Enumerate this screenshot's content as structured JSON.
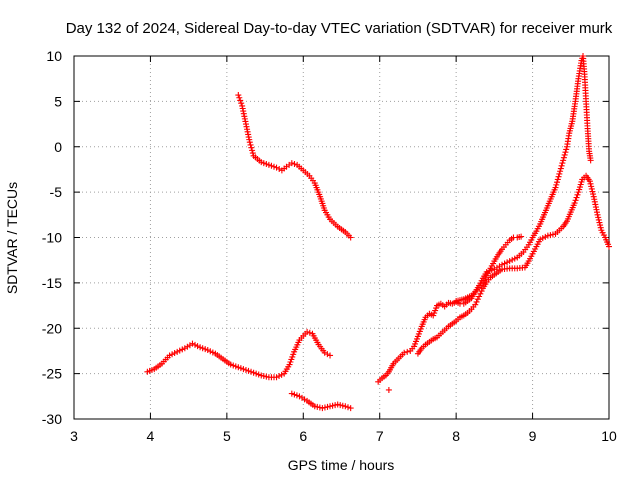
{
  "chart_data": {
    "type": "scatter",
    "title": "Day 132 of 2024, Sidereal Day-to-day VTEC variation (SDTVAR) for receiver murk",
    "xlabel": "GPS time / hours",
    "ylabel": "SDTVAR / TECUs",
    "xlim": [
      3,
      10
    ],
    "ylim": [
      -30,
      10
    ],
    "xticks": [
      3,
      4,
      5,
      6,
      7,
      8,
      9,
      10
    ],
    "yticks": [
      -30,
      -25,
      -20,
      -15,
      -10,
      -5,
      0,
      5,
      10
    ],
    "grid": true,
    "marker": "plus",
    "color": "#ff0000",
    "series": [
      {
        "name": "arc-1",
        "points": [
          [
            3.96,
            -24.8
          ],
          [
            4.05,
            -24.5
          ],
          [
            4.15,
            -23.9
          ],
          [
            4.25,
            -23.0
          ],
          [
            4.35,
            -22.6
          ],
          [
            4.45,
            -22.2
          ],
          [
            4.55,
            -21.7
          ],
          [
            4.65,
            -22.1
          ],
          [
            4.75,
            -22.4
          ],
          [
            4.85,
            -22.8
          ],
          [
            4.95,
            -23.4
          ],
          [
            5.05,
            -24.0
          ],
          [
            5.15,
            -24.3
          ],
          [
            5.25,
            -24.6
          ],
          [
            5.35,
            -24.9
          ],
          [
            5.45,
            -25.2
          ],
          [
            5.55,
            -25.4
          ],
          [
            5.65,
            -25.4
          ],
          [
            5.75,
            -25.0
          ],
          [
            5.82,
            -24.0
          ],
          [
            5.88,
            -22.6
          ],
          [
            5.95,
            -21.3
          ],
          [
            6.05,
            -20.4
          ],
          [
            6.12,
            -20.6
          ],
          [
            6.2,
            -21.8
          ],
          [
            6.28,
            -22.7
          ],
          [
            6.35,
            -23.0
          ]
        ]
      },
      {
        "name": "arc-2",
        "points": [
          [
            5.15,
            5.7
          ],
          [
            5.2,
            4.5
          ],
          [
            5.25,
            2.5
          ],
          [
            5.3,
            0.5
          ],
          [
            5.35,
            -1.0
          ],
          [
            5.45,
            -1.7
          ],
          [
            5.55,
            -2.0
          ],
          [
            5.65,
            -2.3
          ],
          [
            5.72,
            -2.6
          ],
          [
            5.78,
            -2.2
          ],
          [
            5.85,
            -1.8
          ],
          [
            5.92,
            -2.0
          ],
          [
            6.0,
            -2.6
          ],
          [
            6.08,
            -3.2
          ],
          [
            6.15,
            -4.0
          ],
          [
            6.22,
            -5.5
          ],
          [
            6.28,
            -7.0
          ],
          [
            6.35,
            -8.0
          ],
          [
            6.45,
            -8.8
          ],
          [
            6.55,
            -9.4
          ],
          [
            6.62,
            -10.0
          ]
        ]
      },
      {
        "name": "arc-3",
        "points": [
          [
            5.85,
            -27.2
          ],
          [
            5.95,
            -27.5
          ],
          [
            6.05,
            -28.0
          ],
          [
            6.15,
            -28.6
          ],
          [
            6.25,
            -28.8
          ],
          [
            6.35,
            -28.6
          ],
          [
            6.45,
            -28.4
          ],
          [
            6.55,
            -28.6
          ],
          [
            6.62,
            -28.8
          ]
        ]
      },
      {
        "name": "arc-4",
        "points": [
          [
            6.98,
            -25.9
          ],
          [
            7.03,
            -25.5
          ],
          [
            7.08,
            -25.2
          ],
          [
            7.12,
            -24.8
          ],
          [
            7.18,
            -23.9
          ],
          [
            7.25,
            -23.3
          ],
          [
            7.32,
            -22.7
          ],
          [
            7.4,
            -22.5
          ],
          [
            7.45,
            -22.0
          ],
          [
            7.5,
            -20.9
          ],
          [
            7.55,
            -19.8
          ],
          [
            7.6,
            -18.8
          ],
          [
            7.65,
            -18.4
          ],
          [
            7.7,
            -18.6
          ],
          [
            7.75,
            -17.5
          ],
          [
            7.8,
            -17.3
          ],
          [
            7.85,
            -17.6
          ],
          [
            7.9,
            -17.2
          ],
          [
            7.95,
            -17.3
          ],
          [
            8.0,
            -17.1
          ],
          [
            8.05,
            -17.3
          ],
          [
            8.1,
            -17.3
          ],
          [
            8.15,
            -17.0
          ],
          [
            8.2,
            -16.7
          ],
          [
            8.25,
            -16.0
          ],
          [
            8.3,
            -15.3
          ],
          [
            8.35,
            -14.5
          ],
          [
            8.4,
            -13.8
          ],
          [
            8.5,
            -13.5
          ],
          [
            8.6,
            -13.0
          ],
          [
            8.7,
            -12.6
          ],
          [
            8.8,
            -12.2
          ],
          [
            8.88,
            -11.6
          ],
          [
            8.95,
            -10.8
          ],
          [
            9.0,
            -10.0
          ],
          [
            9.05,
            -9.3
          ],
          [
            9.1,
            -8.5
          ],
          [
            9.15,
            -7.5
          ],
          [
            9.2,
            -6.5
          ],
          [
            9.25,
            -5.5
          ],
          [
            9.3,
            -4.5
          ],
          [
            9.35,
            -3.0
          ],
          [
            9.4,
            -1.5
          ],
          [
            9.45,
            0.0
          ],
          [
            9.48,
            1.5
          ],
          [
            9.52,
            2.8
          ],
          [
            9.56,
            5.0
          ],
          [
            9.6,
            7.5
          ],
          [
            9.64,
            9.5
          ],
          [
            9.66,
            10.0
          ],
          [
            9.68,
            8.0
          ],
          [
            9.7,
            5.0
          ],
          [
            9.72,
            2.0
          ],
          [
            9.74,
            -0.5
          ],
          [
            9.76,
            -1.5
          ]
        ]
      },
      {
        "name": "arc-5",
        "points": [
          [
            7.12,
            -26.8
          ]
        ]
      },
      {
        "name": "arc-6",
        "points": [
          [
            7.5,
            -22.8
          ],
          [
            7.55,
            -22.2
          ],
          [
            7.6,
            -21.8
          ],
          [
            7.65,
            -21.5
          ],
          [
            7.7,
            -21.2
          ],
          [
            7.75,
            -21.0
          ],
          [
            7.8,
            -20.6
          ],
          [
            7.85,
            -20.2
          ],
          [
            7.9,
            -19.8
          ],
          [
            7.95,
            -19.5
          ],
          [
            8.0,
            -19.2
          ],
          [
            8.05,
            -18.8
          ],
          [
            8.1,
            -18.6
          ],
          [
            8.15,
            -18.3
          ],
          [
            8.2,
            -17.9
          ],
          [
            8.25,
            -17.4
          ],
          [
            8.3,
            -16.5
          ],
          [
            8.35,
            -15.6
          ],
          [
            8.4,
            -14.9
          ],
          [
            8.45,
            -14.4
          ],
          [
            8.5,
            -14.1
          ],
          [
            8.55,
            -13.8
          ],
          [
            8.6,
            -13.5
          ],
          [
            8.7,
            -13.4
          ],
          [
            8.8,
            -13.4
          ],
          [
            8.9,
            -13.3
          ],
          [
            8.95,
            -12.6
          ],
          [
            9.0,
            -11.8
          ],
          [
            9.05,
            -11.0
          ],
          [
            9.1,
            -10.2
          ],
          [
            9.2,
            -9.8
          ],
          [
            9.3,
            -9.6
          ],
          [
            9.4,
            -8.8
          ],
          [
            9.45,
            -8.2
          ],
          [
            9.5,
            -7.2
          ],
          [
            9.55,
            -6.2
          ],
          [
            9.6,
            -5.0
          ],
          [
            9.65,
            -3.6
          ],
          [
            9.7,
            -3.2
          ],
          [
            9.75,
            -3.8
          ],
          [
            9.8,
            -5.5
          ],
          [
            9.85,
            -7.5
          ],
          [
            9.9,
            -9.2
          ],
          [
            9.95,
            -10.0
          ],
          [
            10.0,
            -11.0
          ]
        ]
      },
      {
        "name": "arc-7",
        "points": [
          [
            8.0,
            -17.0
          ],
          [
            8.05,
            -16.9
          ],
          [
            8.1,
            -16.8
          ],
          [
            8.15,
            -16.6
          ],
          [
            8.2,
            -16.4
          ],
          [
            8.25,
            -16.0
          ],
          [
            8.3,
            -15.5
          ],
          [
            8.35,
            -15.0
          ],
          [
            8.4,
            -14.2
          ],
          [
            8.45,
            -13.4
          ],
          [
            8.5,
            -12.6
          ],
          [
            8.55,
            -11.9
          ],
          [
            8.6,
            -11.3
          ],
          [
            8.65,
            -10.8
          ],
          [
            8.7,
            -10.3
          ],
          [
            8.75,
            -10.0
          ],
          [
            8.8,
            -10.0
          ],
          [
            8.85,
            -9.9
          ]
        ]
      }
    ]
  }
}
